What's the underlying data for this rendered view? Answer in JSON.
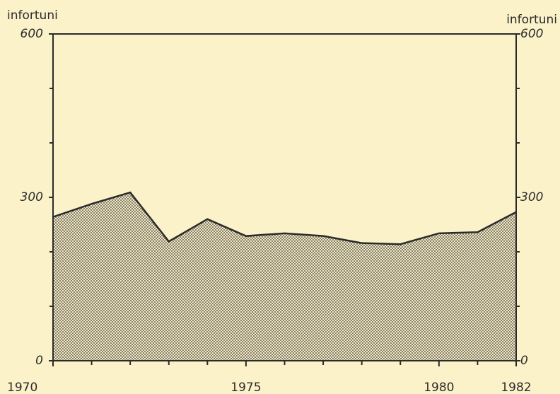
{
  "chart_data": {
    "type": "area",
    "ylabel": "infortuni",
    "y2label": "infortuni",
    "x": [
      1970,
      1971,
      1972,
      1973,
      1974,
      1975,
      1976,
      1977,
      1978,
      1979,
      1980,
      1981,
      1982
    ],
    "values": [
      264,
      288,
      309,
      219,
      260,
      229,
      234,
      229,
      216,
      214,
      234,
      236,
      273
    ],
    "color": "#2b2b2b",
    "xlim": [
      1970,
      1982
    ],
    "xticks": [
      1970,
      1975,
      1980,
      1982
    ],
    "minor_xticks": [
      1971,
      1972,
      1973,
      1974,
      1976,
      1977,
      1978,
      1979,
      1981
    ],
    "ylim": [
      0,
      600
    ],
    "yticks": [
      0,
      300,
      600
    ],
    "minor_yticks": [
      100,
      200,
      400,
      500
    ]
  }
}
